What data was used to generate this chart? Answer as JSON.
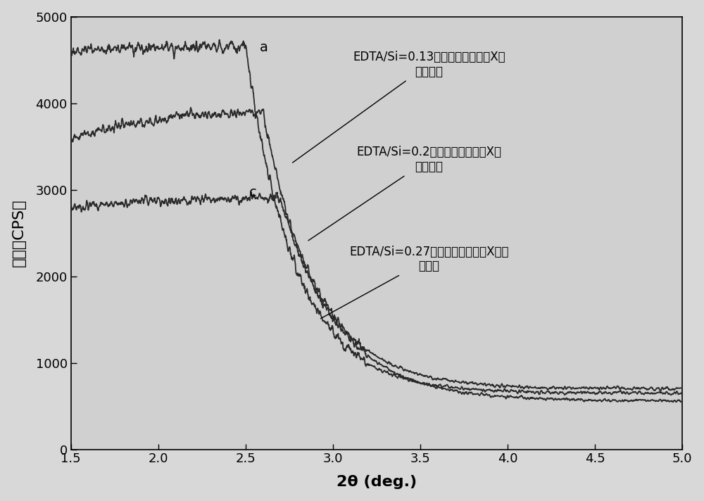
{
  "xlabel": "2θ (deg.)",
  "ylabel": "强度（CPS）",
  "xlim": [
    1.5,
    5.0
  ],
  "ylim": [
    0,
    5000
  ],
  "yticks": [
    0,
    1000,
    2000,
    3000,
    4000,
    5000
  ],
  "xticks": [
    1.5,
    2.0,
    2.5,
    3.0,
    3.5,
    4.0,
    4.5,
    5.0
  ],
  "label_a": "a",
  "label_c": "c",
  "annotation_a_line1": "EDTA/Si=0.13硅基介孔分子筛的X射",
  "annotation_a_line2": "线衍射图",
  "annotation_b_line1": "EDTA/Si=0.2硅基介孔分子筛的X射",
  "annotation_b_line2": "线衍射图",
  "annotation_c_line1": "EDTA/Si=0.27硅基介孔分子筛的X射线",
  "annotation_c_line2": "衍射图",
  "line_color": "#2a2a2a",
  "bg_color": "#d8d8d8",
  "plot_bg_color": "#d0d0d0",
  "font_size_axis_label": 16,
  "font_size_tick": 13,
  "font_size_annotation": 12,
  "font_size_label": 14
}
